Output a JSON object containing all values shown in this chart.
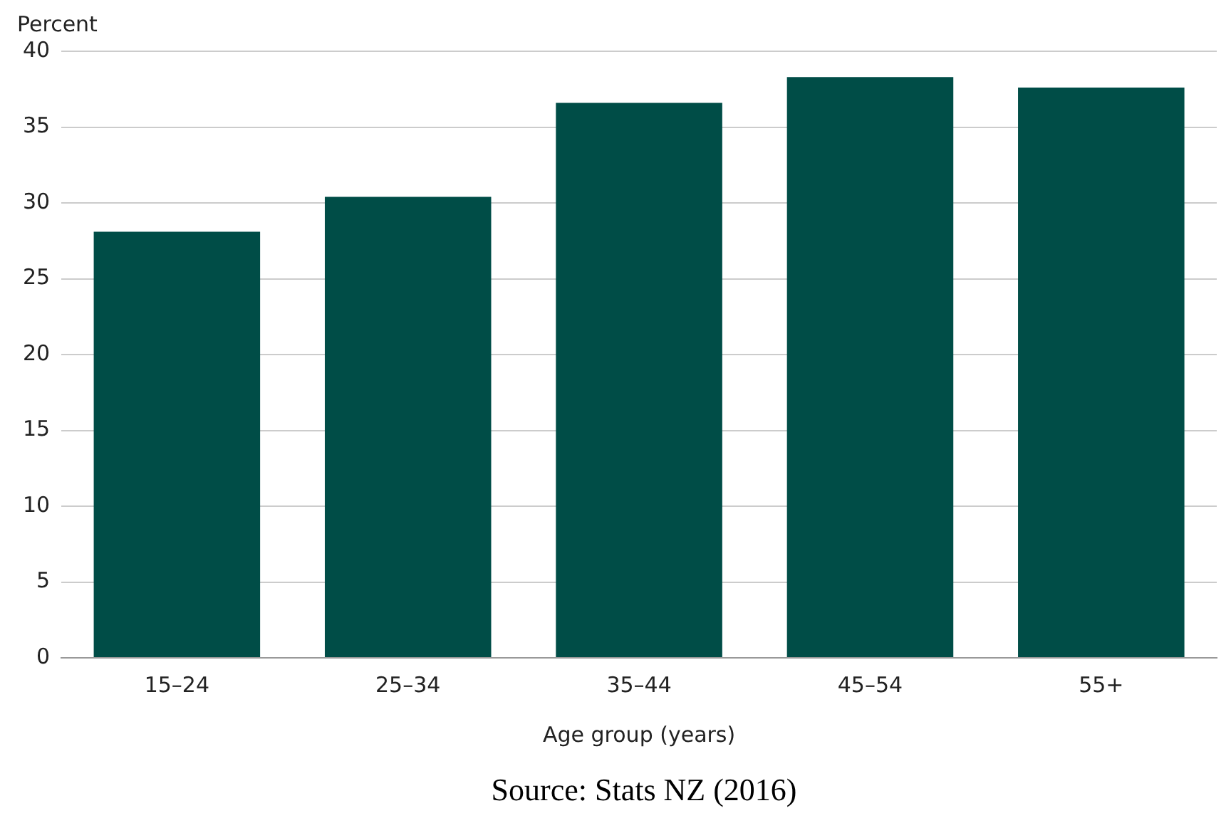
{
  "chart_data": {
    "type": "bar",
    "ylabel": "Percent",
    "xlabel": "Age group (years)",
    "categories": [
      "15–24",
      "25–34",
      "35–44",
      "45–54",
      "55+"
    ],
    "values": [
      28.1,
      30.4,
      36.6,
      38.3,
      37.6
    ],
    "color": "#004d47",
    "ylim": [
      0,
      40
    ],
    "yticks": [
      0,
      5,
      10,
      15,
      20,
      25,
      30,
      35,
      40
    ],
    "grid": "y",
    "annotations": [
      "Source: Stats NZ (2016)"
    ]
  }
}
